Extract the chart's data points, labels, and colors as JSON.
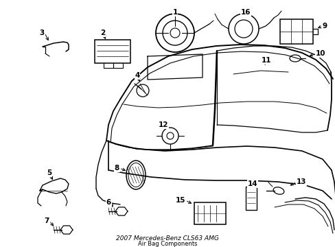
{
  "title": "2007 Mercedes-Benz CLS63 AMG",
  "subtitle": "Air Bag Components",
  "bg_color": "#ffffff",
  "line_color": "#000000",
  "fig_width": 4.89,
  "fig_height": 3.6,
  "dpi": 100
}
